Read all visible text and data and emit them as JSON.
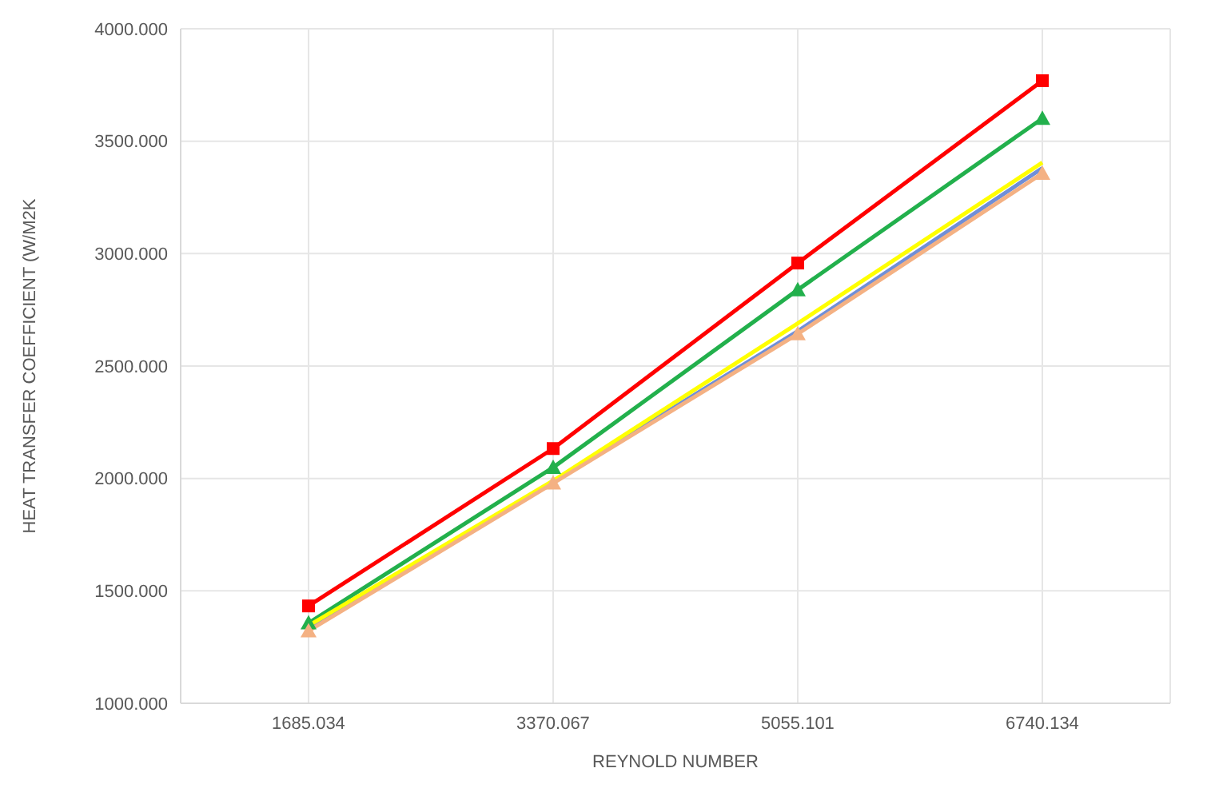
{
  "chart_data": {
    "type": "line",
    "xlabel": "REYNOLD NUMBER",
    "ylabel": "HEAT TRANSFER COEFFICIENT (W/M2K",
    "categories": [
      "1685.034",
      "3370.067",
      "5055.101",
      "6740.134"
    ],
    "series": [
      {
        "color": "#ff0000",
        "marker": "square",
        "values": [
          1433,
          2133,
          2958,
          3769
        ]
      },
      {
        "color": "#22b04c",
        "marker": "triangle",
        "values": [
          1357,
          2049,
          2839,
          3601
        ]
      },
      {
        "color": "#6f8fd8",
        "marker": "none",
        "values": [
          1335,
          1985,
          2655,
          3380
        ]
      },
      {
        "color": "#ffff00",
        "marker": "none",
        "values": [
          1345,
          1990,
          2690,
          3405
        ]
      },
      {
        "color": "#f4b183",
        "marker": "triangle",
        "values": [
          1322,
          1979,
          2643,
          3357
        ]
      }
    ],
    "ylim": [
      1000,
      4000
    ],
    "yticks": [
      {
        "value": 1000,
        "label": "1000.000"
      },
      {
        "value": 1500,
        "label": "1500.000"
      },
      {
        "value": 2000,
        "label": "2000.000"
      },
      {
        "value": 2500,
        "label": "2500.000"
      },
      {
        "value": 3000,
        "label": "3000.000"
      },
      {
        "value": 3500,
        "label": "3500.000"
      },
      {
        "value": 4000,
        "label": "4000.000"
      }
    ],
    "grid": true,
    "line_style": "solid"
  }
}
